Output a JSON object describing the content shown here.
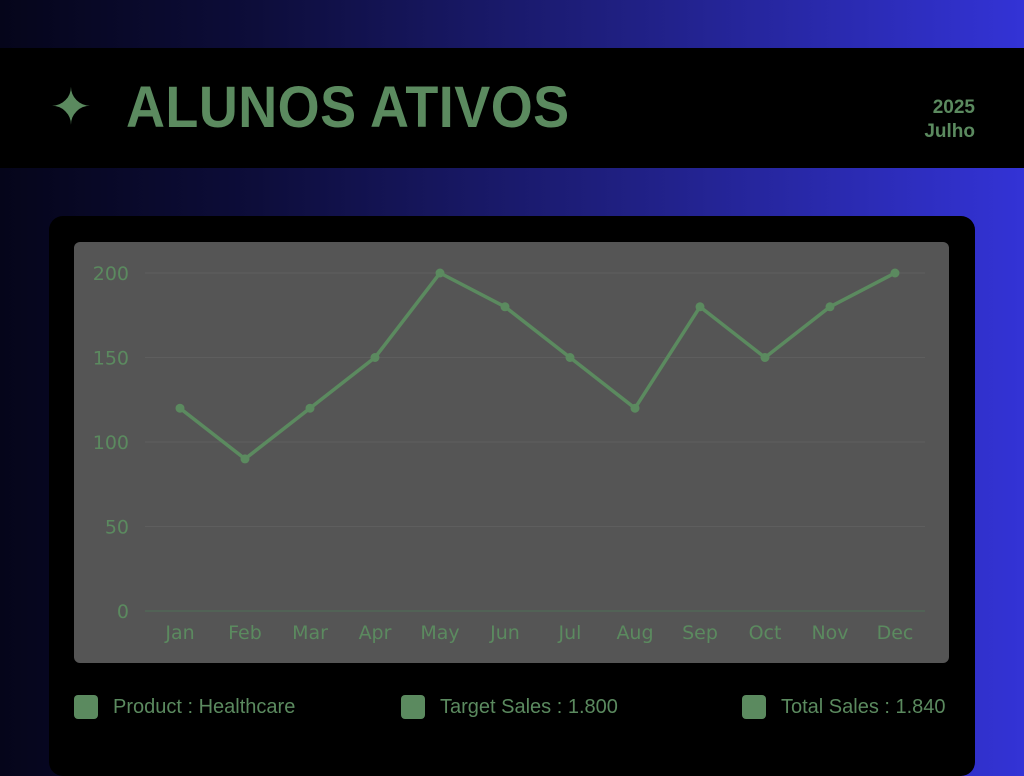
{
  "header": {
    "title": "ALUNOS ATIVOS",
    "sparkle_glyph": "✦",
    "year": "2025",
    "month": "Julho"
  },
  "colors": {
    "accent": "#5b8a5f",
    "plot_background": "#555555",
    "card_background": "#000000",
    "gradient_start": "#05051a",
    "gradient_end": "#3333d6"
  },
  "legend": [
    {
      "label": "Product : Healthcare"
    },
    {
      "label": "Target Sales : 1.800"
    },
    {
      "label": "Total Sales : 1.840"
    }
  ],
  "chart_data": {
    "type": "line",
    "title": "",
    "xlabel": "",
    "ylabel": "",
    "categories": [
      "Jan",
      "Feb",
      "Mar",
      "Apr",
      "May",
      "Jun",
      "Jul",
      "Aug",
      "Sep",
      "Oct",
      "Nov",
      "Dec"
    ],
    "series": [
      {
        "values": [
          120,
          90,
          120,
          150,
          200,
          180,
          150,
          120,
          180,
          150,
          180,
          200
        ]
      }
    ],
    "ylim": [
      0,
      200
    ],
    "yticks": [
      0,
      50,
      100,
      150,
      200
    ],
    "grid": true,
    "markers": true
  }
}
